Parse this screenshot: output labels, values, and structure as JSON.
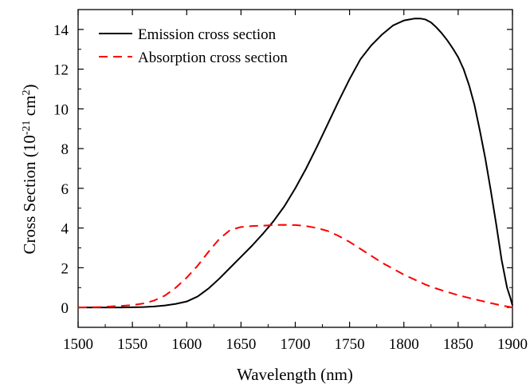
{
  "chart_data": {
    "type": "line",
    "xlabel": "Wavelength (nm)",
    "ylabel": {
      "prefix": "Cross Section (10",
      "exp": "-21",
      "middle": " cm",
      "exp2": "2",
      "suffix": ")"
    },
    "xlim": [
      1500,
      1900
    ],
    "ylim": [
      -1,
      15
    ],
    "x_ticks": [
      1500,
      1550,
      1600,
      1650,
      1700,
      1750,
      1800,
      1850,
      1900
    ],
    "y_ticks": [
      0,
      2,
      4,
      6,
      8,
      10,
      12,
      14
    ],
    "legend_position": "top-left",
    "grid": false,
    "series": [
      {
        "name": "Emission cross section",
        "color": "#000000",
        "dash": "solid",
        "x": [
          1500,
          1520,
          1540,
          1560,
          1570,
          1580,
          1590,
          1600,
          1610,
          1620,
          1630,
          1640,
          1650,
          1660,
          1670,
          1680,
          1690,
          1700,
          1710,
          1720,
          1730,
          1740,
          1750,
          1760,
          1770,
          1780,
          1790,
          1800,
          1810,
          1815,
          1820,
          1825,
          1830,
          1835,
          1840,
          1845,
          1850,
          1855,
          1860,
          1865,
          1870,
          1875,
          1880,
          1885,
          1890,
          1895,
          1898,
          1900
        ],
        "y": [
          0.0,
          0.0,
          0.0,
          0.02,
          0.05,
          0.1,
          0.18,
          0.3,
          0.55,
          0.95,
          1.45,
          2.0,
          2.55,
          3.1,
          3.7,
          4.35,
          5.1,
          6.0,
          7.0,
          8.1,
          9.25,
          10.4,
          11.5,
          12.5,
          13.2,
          13.75,
          14.2,
          14.45,
          14.55,
          14.55,
          14.5,
          14.35,
          14.1,
          13.8,
          13.45,
          13.05,
          12.6,
          12.0,
          11.2,
          10.2,
          8.9,
          7.5,
          5.9,
          4.2,
          2.4,
          1.0,
          0.5,
          0.1
        ]
      },
      {
        "name": "Absorption cross section",
        "color": "#ff0000",
        "dash": "dashed",
        "x": [
          1500,
          1520,
          1540,
          1550,
          1560,
          1570,
          1580,
          1590,
          1600,
          1610,
          1620,
          1630,
          1640,
          1650,
          1660,
          1670,
          1680,
          1690,
          1700,
          1710,
          1720,
          1730,
          1740,
          1750,
          1760,
          1770,
          1780,
          1790,
          1800,
          1810,
          1820,
          1830,
          1840,
          1850,
          1860,
          1870,
          1880,
          1890,
          1900
        ],
        "y": [
          0.0,
          0.02,
          0.08,
          0.12,
          0.2,
          0.35,
          0.6,
          1.0,
          1.5,
          2.1,
          2.8,
          3.45,
          3.9,
          4.05,
          4.1,
          4.12,
          4.15,
          4.16,
          4.15,
          4.1,
          4.0,
          3.85,
          3.6,
          3.3,
          2.95,
          2.6,
          2.25,
          1.95,
          1.65,
          1.4,
          1.15,
          0.95,
          0.78,
          0.62,
          0.48,
          0.35,
          0.22,
          0.1,
          0.0
        ]
      }
    ]
  }
}
